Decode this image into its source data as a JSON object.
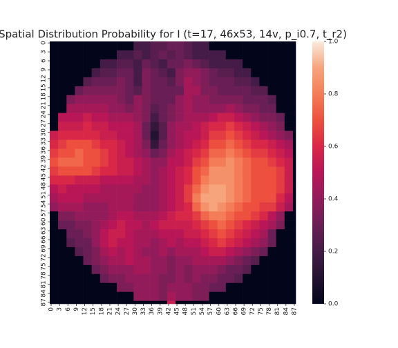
{
  "chart_data": {
    "type": "heatmap",
    "title": "Spatial Distribution Probability for I (t=17, 46x53, 14v, p_i0.7, t_r2)",
    "x": [
      0,
      3,
      6,
      9,
      12,
      15,
      18,
      21,
      24,
      27,
      30,
      33,
      36,
      39,
      42,
      45,
      48,
      51,
      54,
      57,
      60,
      63,
      66,
      69,
      72,
      75,
      78,
      81,
      84,
      87
    ],
    "y": [
      0,
      3,
      6,
      9,
      12,
      15,
      18,
      21,
      24,
      27,
      30,
      33,
      36,
      39,
      42,
      45,
      48,
      51,
      54,
      57,
      60,
      63,
      66,
      69,
      72,
      75,
      78,
      81,
      84,
      87
    ],
    "xlim": [
      0,
      88
    ],
    "ylim": [
      0,
      88
    ],
    "zlim": [
      0,
      1
    ],
    "zticks": [
      {
        "value": 0,
        "label": "0.0"
      },
      {
        "value": 0.2,
        "label": "0.2"
      },
      {
        "value": 0.4,
        "label": "0.4"
      },
      {
        "value": 0.6,
        "label": "0.6"
      },
      {
        "value": 0.8,
        "label": "0.8"
      },
      {
        "value": 1,
        "label": "1.0"
      }
    ],
    "colormap": [
      "#03051a",
      "#221331",
      "#451c47",
      "#691f55",
      "#921c5b",
      "#b91657",
      "#d92847",
      "#ed503e",
      "#f47d57",
      "#f6a47c",
      "#faebdd"
    ],
    "values": [
      [
        0,
        0,
        0,
        0,
        0,
        0,
        0,
        0,
        0,
        0,
        0.2,
        0.2,
        0.25,
        0.25,
        0.3,
        0.3,
        0.25,
        0.2,
        0.2,
        0,
        0,
        0,
        0,
        0,
        0,
        0,
        0,
        0,
        0,
        0
      ],
      [
        0,
        0,
        0,
        0,
        0,
        0,
        0,
        0,
        0.2,
        0.2,
        0.25,
        0.2,
        0.25,
        0.3,
        0.25,
        0.3,
        0.25,
        0.2,
        0.2,
        0.2,
        0.2,
        0,
        0,
        0,
        0,
        0,
        0,
        0,
        0,
        0
      ],
      [
        0,
        0,
        0,
        0,
        0,
        0,
        0.2,
        0.2,
        0.25,
        0.25,
        0.2,
        0.3,
        0.25,
        0.2,
        0.3,
        0.3,
        0.35,
        0.3,
        0.25,
        0.2,
        0.2,
        0.2,
        0.2,
        0,
        0,
        0,
        0,
        0,
        0,
        0
      ],
      [
        0,
        0,
        0,
        0,
        0,
        0.2,
        0.25,
        0.25,
        0.3,
        0.3,
        0.2,
        0.35,
        0.3,
        0.25,
        0.2,
        0.35,
        0.4,
        0.4,
        0.35,
        0.3,
        0.25,
        0.25,
        0.2,
        0.2,
        0,
        0,
        0,
        0,
        0,
        0
      ],
      [
        0,
        0,
        0,
        0,
        0.25,
        0.3,
        0.3,
        0.3,
        0.35,
        0.3,
        0.2,
        0.35,
        0.3,
        0.3,
        0.25,
        0.35,
        0.45,
        0.4,
        0.35,
        0.3,
        0.3,
        0.3,
        0.25,
        0.25,
        0.2,
        0,
        0,
        0,
        0,
        0
      ],
      [
        0,
        0,
        0,
        0.3,
        0.35,
        0.35,
        0.35,
        0.35,
        0.35,
        0.3,
        0.25,
        0.35,
        0.3,
        0.3,
        0.3,
        0.3,
        0.45,
        0.45,
        0.35,
        0.35,
        0.3,
        0.3,
        0.3,
        0.3,
        0.25,
        0.25,
        0,
        0,
        0,
        0
      ],
      [
        0,
        0,
        0.35,
        0.4,
        0.4,
        0.4,
        0.4,
        0.4,
        0.35,
        0.3,
        0.4,
        0.35,
        0.3,
        0.3,
        0.3,
        0.4,
        0.45,
        0.4,
        0.4,
        0.35,
        0.35,
        0.35,
        0.35,
        0.3,
        0.3,
        0.3,
        0.25,
        0,
        0,
        0
      ],
      [
        0,
        0,
        0.45,
        0.45,
        0.45,
        0.45,
        0.45,
        0.4,
        0.4,
        0.35,
        0.4,
        0.35,
        0.25,
        0.3,
        0.35,
        0.4,
        0.45,
        0.4,
        0.4,
        0.4,
        0.4,
        0.45,
        0.4,
        0.35,
        0.35,
        0.3,
        0.3,
        0,
        0,
        0
      ],
      [
        0,
        0.5,
        0.5,
        0.5,
        0.55,
        0.5,
        0.5,
        0.45,
        0.45,
        0.45,
        0.4,
        0.35,
        0.2,
        0.3,
        0.35,
        0.4,
        0.45,
        0.45,
        0.45,
        0.5,
        0.55,
        0.55,
        0.5,
        0.45,
        0.4,
        0.35,
        0.35,
        0.3,
        0,
        0
      ],
      [
        0,
        0.55,
        0.55,
        0.55,
        0.6,
        0.55,
        0.55,
        0.5,
        0.5,
        0.5,
        0.45,
        0.3,
        0.15,
        0.25,
        0.4,
        0.45,
        0.45,
        0.5,
        0.55,
        0.6,
        0.6,
        0.65,
        0.6,
        0.55,
        0.5,
        0.45,
        0.4,
        0.35,
        0,
        0
      ],
      [
        0.55,
        0.6,
        0.6,
        0.6,
        0.6,
        0.6,
        0.55,
        0.55,
        0.5,
        0.5,
        0.45,
        0.3,
        0.1,
        0.25,
        0.4,
        0.45,
        0.5,
        0.5,
        0.55,
        0.65,
        0.65,
        0.7,
        0.65,
        0.6,
        0.55,
        0.5,
        0.45,
        0.4,
        0.35,
        0
      ],
      [
        0.6,
        0.65,
        0.7,
        0.7,
        0.7,
        0.65,
        0.6,
        0.6,
        0.55,
        0.5,
        0.45,
        0.35,
        0.15,
        0.3,
        0.4,
        0.45,
        0.5,
        0.55,
        0.6,
        0.7,
        0.7,
        0.75,
        0.7,
        0.65,
        0.6,
        0.6,
        0.55,
        0.5,
        0.45,
        0
      ],
      [
        0.65,
        0.7,
        0.7,
        0.75,
        0.7,
        0.7,
        0.65,
        0.6,
        0.55,
        0.5,
        0.45,
        0.4,
        0.3,
        0.35,
        0.45,
        0.5,
        0.55,
        0.6,
        0.65,
        0.75,
        0.75,
        0.8,
        0.75,
        0.7,
        0.65,
        0.65,
        0.6,
        0.55,
        0.5,
        0
      ],
      [
        0.7,
        0.75,
        0.75,
        0.75,
        0.7,
        0.7,
        0.65,
        0.6,
        0.55,
        0.55,
        0.5,
        0.45,
        0.4,
        0.4,
        0.5,
        0.5,
        0.55,
        0.65,
        0.7,
        0.8,
        0.8,
        0.85,
        0.8,
        0.75,
        0.7,
        0.7,
        0.65,
        0.6,
        0.55,
        0
      ],
      [
        0.65,
        0.7,
        0.7,
        0.7,
        0.7,
        0.65,
        0.6,
        0.6,
        0.55,
        0.55,
        0.5,
        0.45,
        0.4,
        0.45,
        0.5,
        0.55,
        0.6,
        0.7,
        0.75,
        0.85,
        0.85,
        0.85,
        0.8,
        0.75,
        0.7,
        0.7,
        0.7,
        0.65,
        0.55,
        0
      ],
      [
        0.6,
        0.6,
        0.6,
        0.55,
        0.55,
        0.55,
        0.5,
        0.5,
        0.5,
        0.5,
        0.45,
        0.45,
        0.4,
        0.45,
        0.5,
        0.55,
        0.6,
        0.7,
        0.8,
        0.85,
        0.85,
        0.85,
        0.8,
        0.75,
        0.7,
        0.7,
        0.7,
        0.65,
        0.55,
        0
      ],
      [
        0.5,
        0.55,
        0.5,
        0.5,
        0.5,
        0.5,
        0.45,
        0.45,
        0.45,
        0.45,
        0.45,
        0.4,
        0.4,
        0.45,
        0.5,
        0.55,
        0.65,
        0.75,
        0.85,
        0.9,
        0.9,
        0.85,
        0.8,
        0.75,
        0.7,
        0.7,
        0.7,
        0.65,
        0.55,
        0
      ],
      [
        0.45,
        0.5,
        0.5,
        0.5,
        0.45,
        0.45,
        0.45,
        0.45,
        0.45,
        0.45,
        0.4,
        0.4,
        0.4,
        0.45,
        0.5,
        0.55,
        0.65,
        0.8,
        0.9,
        0.9,
        0.9,
        0.85,
        0.8,
        0.75,
        0.7,
        0.7,
        0.7,
        0.6,
        0.5,
        0
      ],
      [
        0.4,
        0.45,
        0.45,
        0.45,
        0.4,
        0.4,
        0.4,
        0.45,
        0.45,
        0.45,
        0.4,
        0.4,
        0.4,
        0.45,
        0.5,
        0.55,
        0.6,
        0.75,
        0.85,
        0.9,
        0.85,
        0.8,
        0.75,
        0.7,
        0.7,
        0.65,
        0.65,
        0.55,
        0.45,
        0
      ],
      [
        0,
        0.35,
        0.35,
        0.4,
        0.4,
        0.4,
        0.4,
        0.45,
        0.5,
        0.5,
        0.45,
        0.45,
        0.45,
        0.5,
        0.55,
        0.6,
        0.6,
        0.65,
        0.75,
        0.8,
        0.8,
        0.75,
        0.7,
        0.7,
        0.65,
        0.6,
        0.5,
        0.4,
        0,
        0
      ],
      [
        0,
        0.3,
        0.3,
        0.35,
        0.35,
        0.4,
        0.45,
        0.5,
        0.55,
        0.5,
        0.5,
        0.45,
        0.5,
        0.55,
        0.55,
        0.55,
        0.55,
        0.6,
        0.65,
        0.7,
        0.75,
        0.7,
        0.65,
        0.6,
        0.55,
        0.5,
        0.45,
        0.35,
        0,
        0
      ],
      [
        0,
        0,
        0.3,
        0.3,
        0.35,
        0.4,
        0.5,
        0.55,
        0.55,
        0.5,
        0.45,
        0.45,
        0.45,
        0.5,
        0.5,
        0.5,
        0.55,
        0.55,
        0.6,
        0.65,
        0.7,
        0.65,
        0.6,
        0.55,
        0.5,
        0.45,
        0.3,
        0,
        0,
        0
      ],
      [
        0,
        0,
        0.25,
        0.3,
        0.3,
        0.4,
        0.5,
        0.55,
        0.5,
        0.5,
        0.45,
        0.45,
        0.4,
        0.45,
        0.5,
        0.45,
        0.5,
        0.5,
        0.55,
        0.6,
        0.65,
        0.6,
        0.55,
        0.5,
        0.45,
        0.4,
        0.3,
        0,
        0,
        0
      ],
      [
        0,
        0,
        0,
        0.25,
        0.3,
        0.35,
        0.45,
        0.5,
        0.45,
        0.5,
        0.45,
        0.4,
        0.4,
        0.45,
        0.4,
        0.45,
        0.45,
        0.45,
        0.5,
        0.55,
        0.55,
        0.5,
        0.45,
        0.4,
        0.35,
        0.3,
        0,
        0,
        0,
        0
      ],
      [
        0,
        0,
        0,
        0,
        0.3,
        0.35,
        0.4,
        0.45,
        0.45,
        0.5,
        0.45,
        0.45,
        0.4,
        0.4,
        0.35,
        0.4,
        0.4,
        0.45,
        0.45,
        0.45,
        0.45,
        0.4,
        0.35,
        0.3,
        0.25,
        0,
        0,
        0,
        0,
        0
      ],
      [
        0,
        0,
        0,
        0,
        0,
        0.3,
        0.35,
        0.4,
        0.4,
        0.4,
        0.45,
        0.45,
        0.4,
        0.4,
        0.35,
        0.4,
        0.35,
        0.4,
        0.4,
        0.4,
        0.35,
        0.3,
        0.3,
        0.25,
        0,
        0,
        0,
        0,
        0,
        0
      ],
      [
        0,
        0,
        0,
        0,
        0,
        0,
        0.3,
        0.35,
        0.35,
        0.4,
        0.4,
        0.4,
        0.4,
        0.35,
        0.35,
        0.4,
        0.35,
        0.4,
        0.35,
        0.35,
        0.3,
        0.3,
        0.25,
        0,
        0,
        0,
        0,
        0,
        0,
        0
      ],
      [
        0,
        0,
        0,
        0,
        0,
        0,
        0,
        0,
        0.35,
        0.35,
        0.4,
        0.4,
        0.4,
        0.35,
        0.4,
        0.4,
        0.4,
        0.35,
        0.35,
        0.3,
        0.3,
        0,
        0,
        0,
        0,
        0,
        0,
        0,
        0,
        0
      ],
      [
        0,
        0,
        0,
        0,
        0,
        0,
        0,
        0,
        0,
        0,
        0.4,
        0.4,
        0.4,
        0.35,
        0.45,
        0.4,
        0.4,
        0.35,
        0.35,
        0,
        0,
        0,
        0,
        0,
        0,
        0,
        0,
        0,
        0,
        0
      ],
      [
        0,
        0,
        0,
        0,
        0,
        0,
        0,
        0,
        0,
        0,
        0,
        0,
        0,
        0,
        0.55,
        0,
        0,
        0,
        0,
        0,
        0,
        0,
        0,
        0,
        0,
        0,
        0,
        0,
        0,
        0
      ]
    ]
  }
}
